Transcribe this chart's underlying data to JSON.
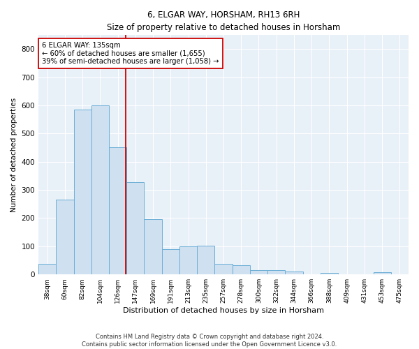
{
  "title": "6, ELGAR WAY, HORSHAM, RH13 6RH",
  "subtitle": "Size of property relative to detached houses in Horsham",
  "xlabel": "Distribution of detached houses by size in Horsham",
  "ylabel": "Number of detached properties",
  "categories": [
    "38sqm",
    "60sqm",
    "82sqm",
    "104sqm",
    "126sqm",
    "147sqm",
    "169sqm",
    "191sqm",
    "213sqm",
    "235sqm",
    "257sqm",
    "278sqm",
    "300sqm",
    "322sqm",
    "344sqm",
    "366sqm",
    "388sqm",
    "409sqm",
    "431sqm",
    "453sqm",
    "475sqm"
  ],
  "values": [
    38,
    265,
    585,
    600,
    452,
    328,
    196,
    90,
    100,
    103,
    38,
    32,
    15,
    15,
    10,
    0,
    5,
    0,
    0,
    8,
    0
  ],
  "bar_color": "#cfe0f0",
  "bar_edge_color": "#6aaed6",
  "vline_x": 4.45,
  "vline_color": "#cc0000",
  "annotation_text": "6 ELGAR WAY: 135sqm\n← 60% of detached houses are smaller (1,655)\n39% of semi-detached houses are larger (1,058) →",
  "annotation_box_color": "white",
  "annotation_box_edge": "#cc0000",
  "ylim": [
    0,
    850
  ],
  "yticks": [
    0,
    100,
    200,
    300,
    400,
    500,
    600,
    700,
    800
  ],
  "footer_line1": "Contains HM Land Registry data © Crown copyright and database right 2024.",
  "footer_line2": "Contains public sector information licensed under the Open Government Licence v3.0.",
  "axes_bg_color": "#e8f0f8",
  "fig_bg_color": "#ffffff"
}
